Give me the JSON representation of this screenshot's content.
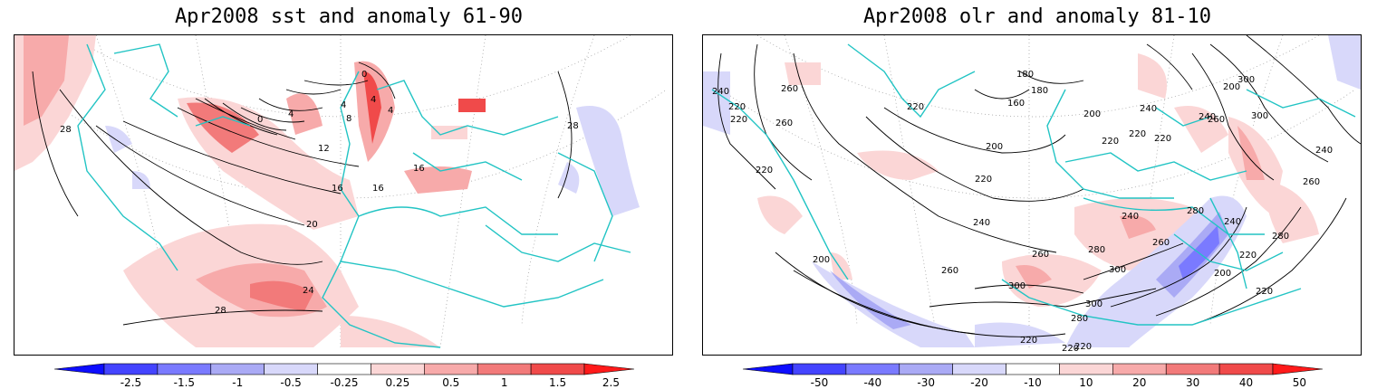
{
  "panels": [
    {
      "title": "Apr2008 sst and anomaly 61-90",
      "contour_labels": [
        "0",
        "4",
        "8",
        "4",
        "4",
        "0",
        "4",
        "12",
        "16",
        "16",
        "16",
        "20",
        "24",
        "28",
        "28",
        "28"
      ],
      "colorbar": {
        "ticks": [
          "-2.5",
          "-1.5",
          "-1",
          "-0.5",
          "-0.25",
          "0.25",
          "0.5",
          "1",
          "1.5",
          "2.5"
        ],
        "colors": [
          "#0d0dff",
          "#4444ff",
          "#7a7aff",
          "#aaaaf5",
          "#d8d8fa",
          "#ffffff",
          "#fbd6d6",
          "#f7aaaa",
          "#f27a7a",
          "#f04a4a",
          "#ff1a1a"
        ]
      }
    },
    {
      "title": "Apr2008 olr and anomaly 81-10",
      "contour_labels": [
        "240",
        "260",
        "220",
        "220",
        "220",
        "180",
        "180",
        "160",
        "200",
        "200",
        "220",
        "220",
        "220",
        "260",
        "220",
        "200",
        "220",
        "240",
        "240",
        "260",
        "240",
        "280",
        "300",
        "300",
        "280",
        "260",
        "280",
        "220",
        "300",
        "260",
        "300",
        "240",
        "260",
        "200",
        "240",
        "220",
        "240",
        "280",
        "300",
        "260",
        "220",
        "220",
        "200",
        "220"
      ],
      "colorbar": {
        "ticks": [
          "-50",
          "-40",
          "-30",
          "-20",
          "-10",
          "10",
          "20",
          "30",
          "40",
          "50"
        ],
        "colors": [
          "#0d0dff",
          "#4444ff",
          "#7a7aff",
          "#aaaaf5",
          "#d8d8fa",
          "#ffffff",
          "#fbd6d6",
          "#f7aaaa",
          "#f27a7a",
          "#f04a4a",
          "#ff1a1a"
        ]
      }
    }
  ]
}
